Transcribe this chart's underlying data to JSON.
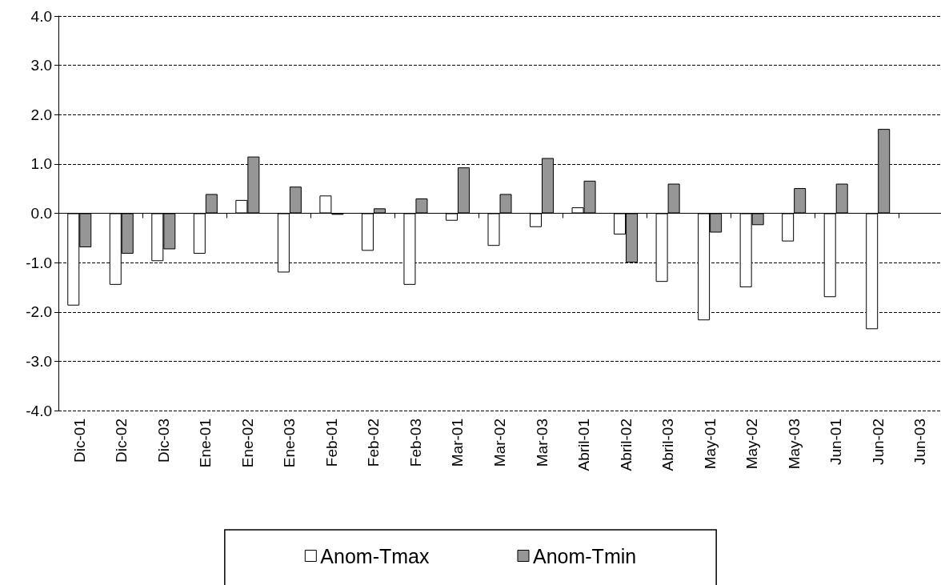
{
  "chart_data": {
    "type": "bar",
    "categories": [
      "Dic-01",
      "Dic-02",
      "Dic-03",
      "Ene-01",
      "Ene-02",
      "Ene-03",
      "Feb-01",
      "Feb-02",
      "Feb-03",
      "Mar-01",
      "Mar-02",
      "Mar-03",
      "Abril-01",
      "Abril-02",
      "Abril-03",
      "May-01",
      "May-02",
      "May-03",
      "Jun-01",
      "Jun-02",
      "Jun-03"
    ],
    "series": [
      {
        "name": "Anom-Tmax",
        "color": "#ffffff",
        "values": [
          -1.87,
          -1.45,
          -0.97,
          -0.82,
          0.27,
          -1.2,
          0.36,
          -0.76,
          -1.45,
          -0.15,
          -0.66,
          -0.28,
          0.12,
          -0.43,
          -1.39,
          -2.17,
          -1.5,
          -0.57,
          -1.7,
          -2.35,
          null
        ]
      },
      {
        "name": "Anom-Tmin",
        "color": "#969696",
        "values": [
          -0.69,
          -0.82,
          -0.73,
          0.39,
          1.15,
          0.54,
          -0.03,
          0.1,
          0.3,
          0.93,
          0.39,
          1.12,
          0.66,
          -1.0,
          0.6,
          -0.39,
          -0.24,
          0.51,
          0.6,
          1.71,
          null
        ]
      }
    ],
    "ylim": [
      -4,
      4
    ],
    "yticks": [
      {
        "value": -4,
        "label": "-4.0"
      },
      {
        "value": -3,
        "label": "-3.0"
      },
      {
        "value": -2,
        "label": "-2.0"
      },
      {
        "value": -1,
        "label": "-1.0"
      },
      {
        "value": 0,
        "label": "0.0"
      },
      {
        "value": 1,
        "label": "1.0"
      },
      {
        "value": 2,
        "label": "2.0"
      },
      {
        "value": 3,
        "label": "3.0"
      },
      {
        "value": 4,
        "label": "4.0"
      }
    ],
    "grid": "y",
    "legend": "bottom"
  }
}
